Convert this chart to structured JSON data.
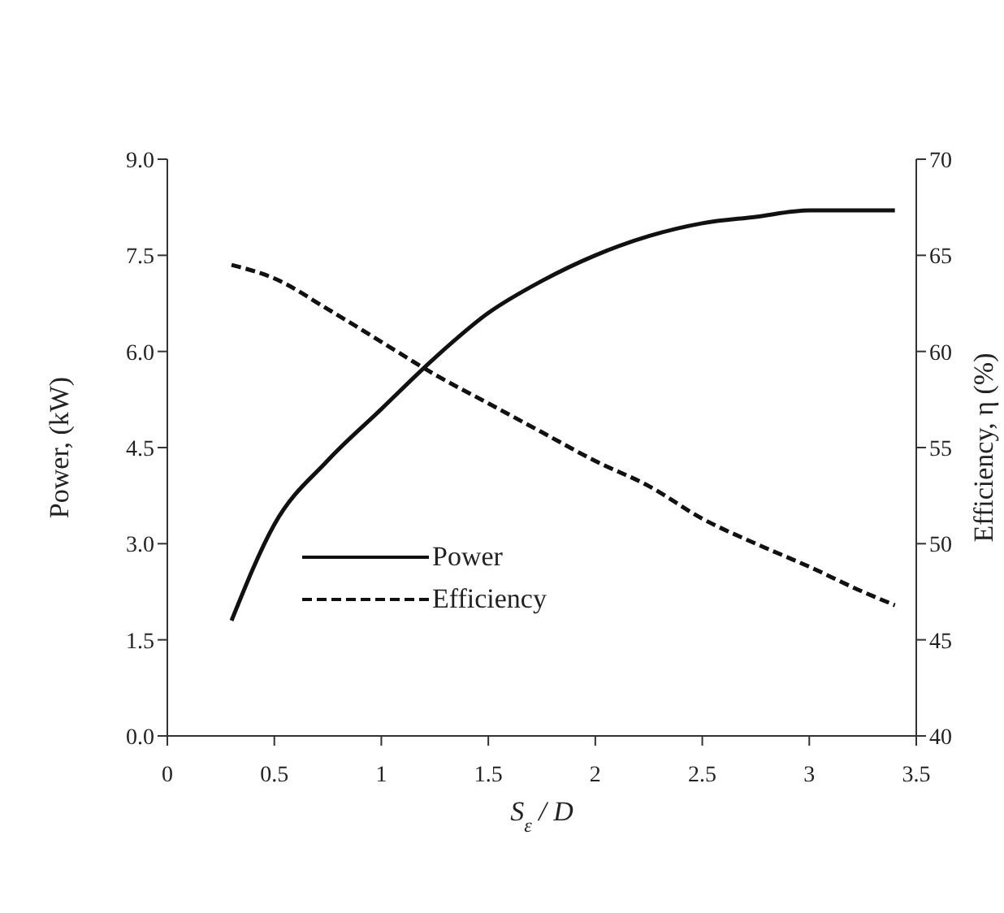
{
  "chart_data": {
    "type": "line",
    "xlabel": "S$_{ε}$ / D",
    "ylabel": "Power, (kW)",
    "y2label": "Efficiency, η (%)",
    "x": [
      0.3,
      0.5,
      0.75,
      1.0,
      1.25,
      1.5,
      1.75,
      2.0,
      2.25,
      2.5,
      2.75,
      3.0,
      3.25,
      3.4
    ],
    "series": [
      {
        "name": "Power",
        "color": "#111111",
        "line_style": "solid",
        "values": [
          1.8,
          3.3,
          4.3,
          5.1,
          5.9,
          6.6,
          7.1,
          7.5,
          7.8,
          8.0,
          8.1,
          8.2,
          8.2,
          8.2
        ]
      },
      {
        "name": "Efficiency",
        "color": "#111111",
        "line_style": "dashed",
        "axis": "y2",
        "values": [
          64.5,
          63.8,
          62.2,
          60.5,
          58.8,
          57.3,
          55.8,
          54.3,
          53.0,
          51.3,
          50.0,
          48.8,
          47.5,
          46.8
        ]
      }
    ],
    "xlim": [
      0,
      3.5
    ],
    "xticks": [
      0,
      0.5,
      1,
      1.5,
      2,
      2.5,
      3,
      3.5
    ],
    "ylim": [
      0,
      9
    ],
    "yticks": [
      {
        "value": 0,
        "label": "0.0"
      },
      {
        "value": 1.5,
        "label": "1.5"
      },
      {
        "value": 3,
        "label": "3.0"
      },
      {
        "value": 4.5,
        "label": "4.5"
      },
      {
        "value": 6,
        "label": "6.0"
      },
      {
        "value": 7.5,
        "label": "7.5"
      },
      {
        "value": 9,
        "label": "9.0"
      }
    ],
    "y2lim": [
      40,
      70
    ],
    "y2ticks": [
      40,
      45,
      50,
      55,
      60,
      65,
      70
    ],
    "grid": false,
    "legend": "center left",
    "marker": "none"
  }
}
